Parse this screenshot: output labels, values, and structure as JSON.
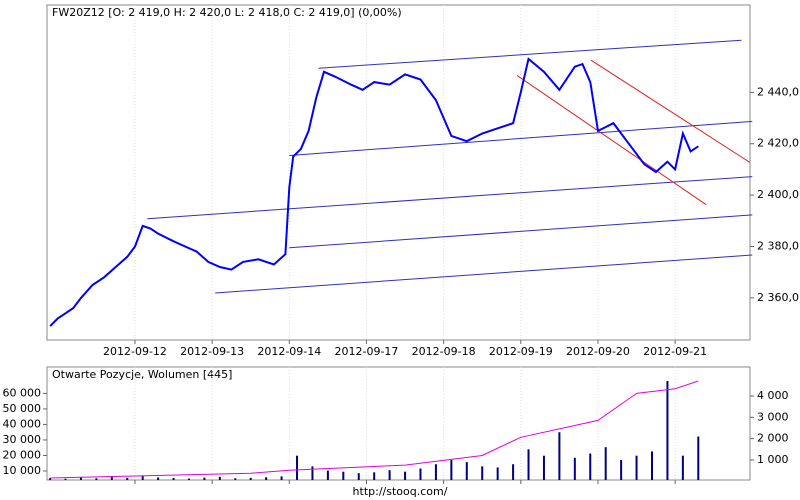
{
  "chart_data": [
    {
      "type": "line",
      "title": "FW20Z12 [O: 2 419,0  H: 2 420,0  L: 2 418,0  C: 2 419,0] (0,00%)",
      "xlim": [
        -0.14,
        8.97
      ],
      "xticks": [
        {
          "value": 1,
          "label": "2012-09-12"
        },
        {
          "value": 2,
          "label": "2012-09-13"
        },
        {
          "value": 3,
          "label": "2012-09-14"
        },
        {
          "value": 4,
          "label": "2012-09-17"
        },
        {
          "value": 5,
          "label": "2012-09-18"
        },
        {
          "value": 6,
          "label": "2012-09-19"
        },
        {
          "value": 7,
          "label": "2012-09-20"
        },
        {
          "value": 8,
          "label": "2012-09-21"
        }
      ],
      "ylim": [
        2343.6,
        2474
      ],
      "yticks": [
        {
          "value": 2360,
          "label": "2 360,0"
        },
        {
          "value": 2380,
          "label": "2 380,0"
        },
        {
          "value": 2400,
          "label": "2 400,0"
        },
        {
          "value": 2420,
          "label": "2 420,0"
        },
        {
          "value": 2440,
          "label": "2 440,0"
        }
      ],
      "grid": true,
      "series": [
        {
          "color": "#0000ff",
          "x": [
            -0.1,
            0.0,
            0.1,
            0.2,
            0.3,
            0.45,
            0.6,
            0.75,
            0.9,
            1.0,
            1.1,
            1.2,
            1.3,
            1.5,
            1.65,
            1.8,
            1.95,
            2.1,
            2.25,
            2.4,
            2.6,
            2.8,
            2.95,
            3.0,
            3.05,
            3.15,
            3.25,
            3.35,
            3.45,
            3.6,
            3.8,
            3.95,
            4.1,
            4.3,
            4.5,
            4.7,
            4.9,
            5.0,
            5.1,
            5.3,
            5.5,
            5.7,
            5.9,
            6.0,
            6.1,
            6.3,
            6.5,
            6.7,
            6.8,
            6.9,
            7.0,
            7.2,
            7.4,
            7.6,
            7.75,
            7.9,
            8.0,
            8.1,
            8.2,
            8.3
          ],
          "values": [
            2349,
            2352,
            2354,
            2356,
            2360,
            2365,
            2368,
            2372,
            2376,
            2380,
            2388,
            2387,
            2385,
            2382,
            2380,
            2378,
            2374,
            2372,
            2371,
            2374,
            2375,
            2373,
            2377,
            2403,
            2415,
            2418,
            2425,
            2438,
            2448,
            2446,
            2443,
            2441,
            2444,
            2443,
            2447,
            2445,
            2437,
            2430,
            2423,
            2421,
            2424,
            2426,
            2428,
            2440,
            2453,
            2448,
            2441,
            2450,
            2451,
            2444,
            2425,
            2428,
            2420,
            2412,
            2409,
            2413,
            2410,
            2424,
            2417,
            2419
          ]
        }
      ],
      "trend_lines": [
        {
          "color": "#3030c0",
          "x": [
            3.38,
            8.86
          ],
          "values": [
            2449.4,
            2460.3
          ]
        },
        {
          "color": "#3030c0",
          "x": [
            3.0,
            9.0
          ],
          "values": [
            2415.4,
            2428.7
          ]
        },
        {
          "color": "#3030c0",
          "x": [
            1.16,
            9.0
          ],
          "values": [
            2390.8,
            2407.2
          ]
        },
        {
          "color": "#3030c0",
          "x": [
            3.0,
            9.0
          ],
          "values": [
            2379.5,
            2392.3
          ]
        },
        {
          "color": "#3030c0",
          "x": [
            2.04,
            9.0
          ],
          "values": [
            2361.9,
            2376.7
          ]
        },
        {
          "color": "#e02020",
          "x": [
            6.91,
            8.97
          ],
          "values": [
            2452.5,
            2412.7
          ]
        },
        {
          "color": "#e02020",
          "x": [
            5.95,
            8.4
          ],
          "values": [
            2446.6,
            2396.3
          ]
        }
      ]
    },
    {
      "type": "bar",
      "title": "Otwarte Pozycje, Wolumen [445]",
      "xlim": [
        -0.14,
        8.97
      ],
      "xticks": [
        1,
        2,
        3,
        4,
        5,
        6,
        7,
        8
      ],
      "grid": true,
      "ylim": [
        4200,
        77000
      ],
      "yticks": [
        {
          "value": 10000,
          "label": "10 000"
        },
        {
          "value": 20000,
          "label": "20 000"
        },
        {
          "value": 30000,
          "label": "30 000"
        },
        {
          "value": 40000,
          "label": "40 000"
        },
        {
          "value": 50000,
          "label": "50 000"
        },
        {
          "value": 60000,
          "label": "60 000"
        }
      ],
      "y2lim": [
        60,
        5360
      ],
      "y2ticks": [
        {
          "value": 1000,
          "label": "1 000"
        },
        {
          "value": 2000,
          "label": "2 000"
        },
        {
          "value": 3000,
          "label": "3 000"
        },
        {
          "value": 4000,
          "label": "4 000"
        }
      ],
      "series": [
        {
          "type": "bar",
          "axis": "y2",
          "color": "#000080",
          "x": [
            -0.1,
            0.1,
            0.3,
            0.5,
            0.7,
            0.9,
            1.1,
            1.3,
            1.5,
            1.7,
            1.9,
            2.1,
            2.3,
            2.5,
            2.7,
            2.9,
            3.1,
            3.3,
            3.5,
            3.7,
            3.9,
            4.1,
            4.3,
            4.5,
            4.7,
            4.9,
            5.1,
            5.3,
            5.5,
            5.7,
            5.9,
            6.1,
            6.3,
            6.5,
            6.7,
            6.9,
            7.1,
            7.3,
            7.5,
            7.7,
            7.9,
            8.1,
            8.3
          ],
          "values": [
            150,
            120,
            180,
            140,
            200,
            160,
            250,
            180,
            150,
            130,
            170,
            210,
            140,
            160,
            190,
            230,
            1200,
            700,
            500,
            450,
            380,
            420,
            520,
            450,
            600,
            800,
            1000,
            900,
            700,
            650,
            800,
            1500,
            1200,
            2300,
            1100,
            1300,
            1600,
            1000,
            1200,
            1400,
            4700,
            1200,
            2100
          ]
        },
        {
          "type": "line",
          "axis": "y",
          "color": "#e000e0",
          "x": [
            -0.1,
            1.0,
            2.5,
            3.0,
            4.5,
            5.5,
            6.0,
            7.0,
            7.5,
            8.0,
            8.3
          ],
          "values": [
            5500,
            6800,
            8600,
            10500,
            13800,
            20000,
            31700,
            42600,
            60000,
            63000,
            68000
          ]
        }
      ]
    }
  ],
  "footer": "http://stooq.com/"
}
